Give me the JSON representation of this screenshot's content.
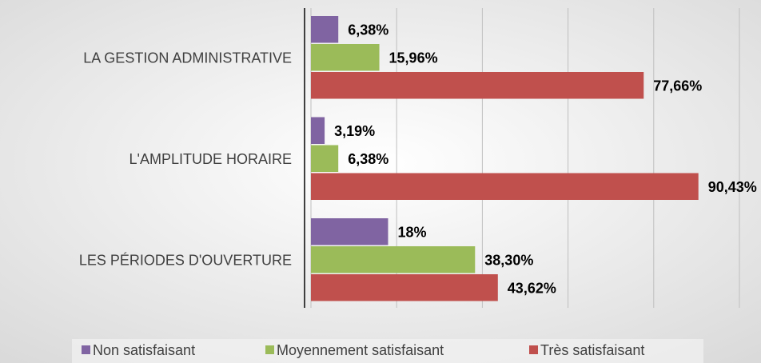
{
  "chart_data": {
    "type": "bar",
    "orientation": "horizontal",
    "categories": [
      "LA GESTION ADMINISTRATIVE",
      "L'AMPLITUDE HORAIRE",
      "LES PÉRIODES D'OUVERTURE"
    ],
    "series": [
      {
        "name": "Non satisfaisant",
        "color": "#8064a2",
        "values": [
          6.38,
          3.19,
          18
        ],
        "value_labels": [
          "6,38%",
          "3,19%",
          "18%"
        ]
      },
      {
        "name": "Moyennement satisfaisant",
        "color": "#9bbb59",
        "values": [
          15.96,
          6.38,
          38.3
        ],
        "value_labels": [
          "15,96%",
          "6,38%",
          "38,30%"
        ]
      },
      {
        "name": "Très satisfaisant",
        "color": "#c0504d",
        "values": [
          77.66,
          90.43,
          43.62
        ],
        "value_labels": [
          "77,66%",
          "90,43%",
          "43,62%"
        ]
      }
    ],
    "xlim": [
      0,
      100
    ],
    "xticks": [
      0,
      20,
      40,
      60,
      80,
      100
    ],
    "grid": true,
    "legend": "bottom"
  }
}
